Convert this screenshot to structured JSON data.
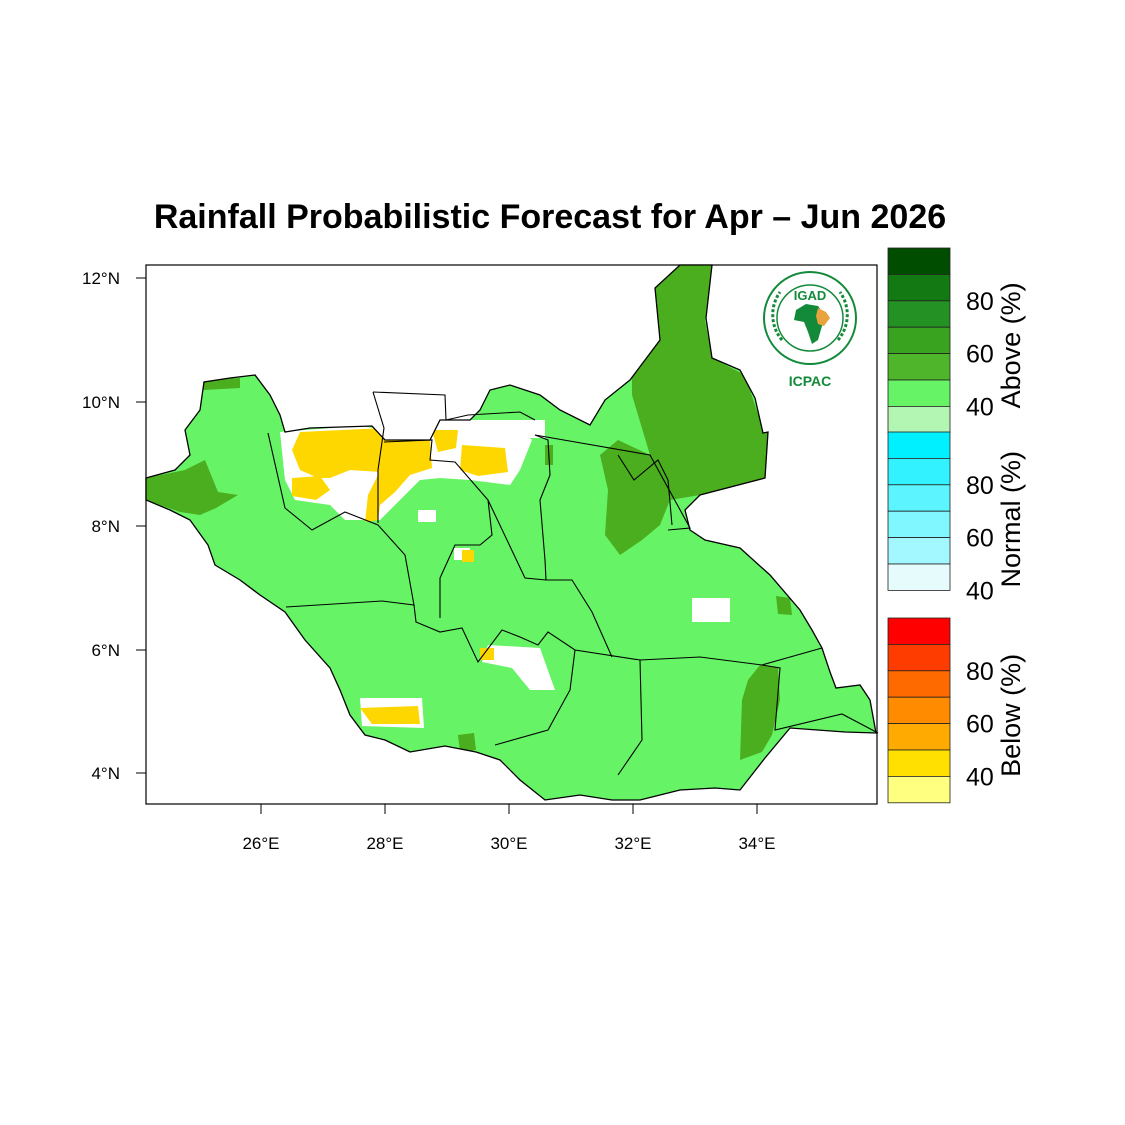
{
  "title": "Rainfall Probabilistic Forecast for Apr – Jun 2026",
  "map": {
    "region": "South Sudan",
    "lon_range": [
      24.2,
      35.8
    ],
    "lat_range": [
      3.5,
      12.2
    ],
    "x_ticks": [
      "26°E",
      "28°E",
      "30°E",
      "32°E",
      "34°E"
    ],
    "y_ticks": [
      "12°N",
      "10°N",
      "8°N",
      "6°N",
      "4°N"
    ]
  },
  "logo": {
    "acronym": "IGAD",
    "subtitle": "ICPAC",
    "ring_text_top": "INTERGOVERNMENTAL AUTHORITY ON DEVELOPMENT",
    "ring_text_bottom": "AUTORITE INTERGOUVERNEMENTALE POUR LE DEVELOPPEMENT"
  },
  "legend": {
    "groups": [
      {
        "label": "Above (%)",
        "ticks": [
          "80",
          "60",
          "40"
        ],
        "colors": [
          "#004d00",
          "#137a13",
          "#249124",
          "#39a31f",
          "#4fb52a",
          "#66f466",
          "#b3f5b3"
        ]
      },
      {
        "label": "Normal (%)",
        "ticks": [
          "80",
          "60",
          "40"
        ],
        "colors": [
          "#00f0ff",
          "#33f2ff",
          "#5cf4ff",
          "#80f6ff",
          "#a3f8ff",
          "#e6fcfc"
        ]
      },
      {
        "label": "Below (%)",
        "ticks": [
          "80",
          "60",
          "40"
        ],
        "colors": [
          "#ff0000",
          "#ff3c00",
          "#ff6a00",
          "#ff8c00",
          "#ffaa00",
          "#ffe000",
          "#ffff80"
        ]
      }
    ]
  },
  "colors": {
    "above_40": "#66f466",
    "above_50": "#4aae1f",
    "below_40": "#ffd700",
    "normal_40": "#ffffff",
    "logo_green": "#138a3a",
    "logo_gold": "#e8a33c"
  }
}
